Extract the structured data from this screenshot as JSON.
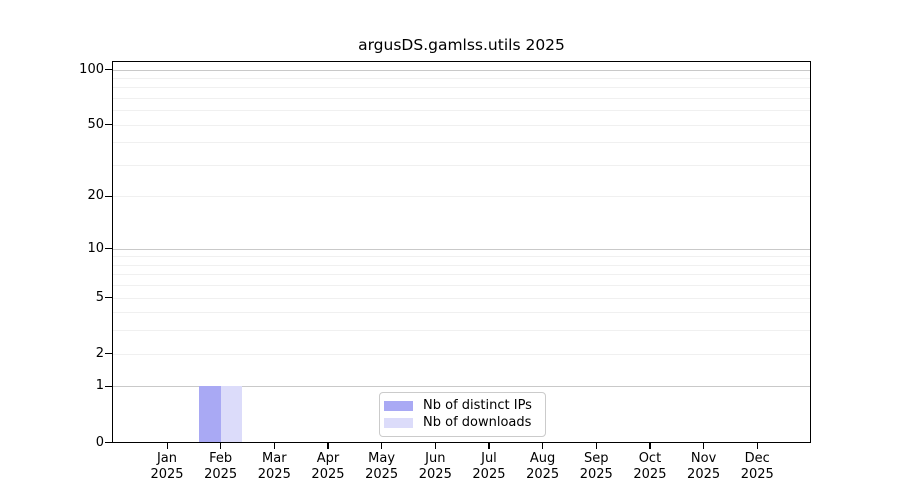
{
  "chart_data": {
    "type": "bar",
    "title": "argusDS.gamlss.utils 2025",
    "x_categories": [
      "Jan",
      "Feb",
      "Mar",
      "Apr",
      "May",
      "Jun",
      "Jul",
      "Aug",
      "Sep",
      "Oct",
      "Nov",
      "Dec"
    ],
    "x_year_label": "2025",
    "xlabel": "",
    "ylabel": "",
    "y_scale": "log1p",
    "ylim": [
      0,
      101
    ],
    "y_tick_values": [
      0,
      1,
      2,
      5,
      10,
      20,
      50,
      100
    ],
    "gridlines_major": [
      1,
      10,
      100
    ],
    "gridlines_minor": [
      2,
      3,
      4,
      5,
      6,
      7,
      8,
      9,
      20,
      30,
      40,
      50,
      60,
      70,
      80,
      90
    ],
    "grid": "horizontal",
    "series": [
      {
        "name": "Nb of distinct IPs",
        "color": "#a9a9f4",
        "values": [
          0,
          1,
          0,
          0,
          0,
          0,
          0,
          0,
          0,
          0,
          0,
          0
        ]
      },
      {
        "name": "Nb of downloads",
        "color": "#dcdcfa",
        "values": [
          0,
          1,
          0,
          0,
          0,
          0,
          0,
          0,
          0,
          0,
          0,
          0
        ]
      }
    ],
    "legend": {
      "position": "bottom-center-inside",
      "entries": [
        "Nb of distinct IPs",
        "Nb of downloads"
      ]
    },
    "colors": {
      "grid_major": "#c9c9c9",
      "grid_minor": "#f0f0f0",
      "spine": "#000000",
      "text": "#000000",
      "legend_border": "#cbcbcb",
      "background": "#ffffff"
    }
  }
}
